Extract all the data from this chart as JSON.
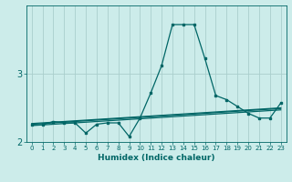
{
  "xlabel": "Humidex (Indice chaleur)",
  "bg_color": "#ccecea",
  "grid_color": "#aacfcd",
  "line_color": "#006666",
  "x": [
    0,
    1,
    2,
    3,
    4,
    5,
    6,
    7,
    8,
    9,
    10,
    11,
    12,
    13,
    14,
    15,
    16,
    17,
    18,
    19,
    20,
    21,
    22,
    23
  ],
  "y_main": [
    2.25,
    2.25,
    2.3,
    2.28,
    2.28,
    2.13,
    2.26,
    2.28,
    2.28,
    2.08,
    2.35,
    2.72,
    3.12,
    3.72,
    3.72,
    3.72,
    3.22,
    2.68,
    2.62,
    2.52,
    2.42,
    2.35,
    2.35,
    2.57
  ],
  "y_line1": [
    2.26,
    2.27,
    2.28,
    2.29,
    2.3,
    2.31,
    2.32,
    2.33,
    2.34,
    2.35,
    2.36,
    2.37,
    2.38,
    2.39,
    2.4,
    2.41,
    2.42,
    2.43,
    2.44,
    2.45,
    2.46,
    2.47,
    2.48,
    2.49
  ],
  "y_line2": [
    2.27,
    2.28,
    2.29,
    2.3,
    2.31,
    2.32,
    2.33,
    2.34,
    2.35,
    2.36,
    2.37,
    2.38,
    2.39,
    2.4,
    2.41,
    2.42,
    2.43,
    2.44,
    2.45,
    2.46,
    2.47,
    2.48,
    2.49,
    2.5
  ],
  "y_line3": [
    2.24,
    2.25,
    2.26,
    2.27,
    2.28,
    2.29,
    2.3,
    2.31,
    2.32,
    2.33,
    2.34,
    2.35,
    2.36,
    2.37,
    2.38,
    2.39,
    2.4,
    2.41,
    2.42,
    2.43,
    2.44,
    2.45,
    2.46,
    2.47
  ],
  "ylim": [
    2.0,
    4.0
  ],
  "yticks": [
    2.0,
    3.0
  ],
  "ytick_labels": [
    "2",
    "3"
  ],
  "xtick_labels": [
    "0",
    "1",
    "2",
    "3",
    "4",
    "5",
    "6",
    "7",
    "8",
    "9",
    "10",
    "11",
    "12",
    "13",
    "14",
    "15",
    "16",
    "17",
    "18",
    "19",
    "20",
    "21",
    "22",
    "23"
  ]
}
